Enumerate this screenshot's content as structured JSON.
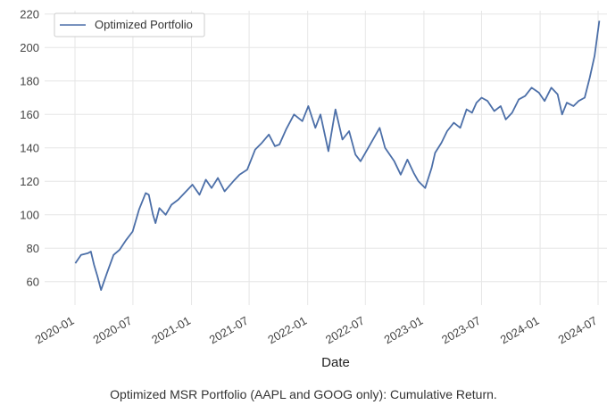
{
  "caption": "Optimized MSR Portfolio (AAPL and GOOG only): Cumulative Return.",
  "chart_data": {
    "type": "line",
    "xlabel": "Date",
    "ylabel": "",
    "ylim": [
      46,
      222
    ],
    "y_ticks": [
      60,
      80,
      100,
      120,
      140,
      160,
      180,
      200,
      220
    ],
    "x_ticks": [
      "2020-01",
      "2020-07",
      "2021-01",
      "2021-07",
      "2022-01",
      "2022-07",
      "2023-01",
      "2023-07",
      "2024-01",
      "2024-07"
    ],
    "grid": true,
    "legend_position": "top-left",
    "series": [
      {
        "name": "Optimized Portfolio",
        "color": "#4c6fa8",
        "x": [
          "2020-01-02",
          "2020-01-20",
          "2020-02-10",
          "2020-02-20",
          "2020-03-01",
          "2020-03-12",
          "2020-03-23",
          "2020-04-10",
          "2020-05-01",
          "2020-05-20",
          "2020-06-10",
          "2020-06-30",
          "2020-07-20",
          "2020-08-10",
          "2020-08-20",
          "2020-09-02",
          "2020-09-10",
          "2020-09-22",
          "2020-10-12",
          "2020-10-30",
          "2020-11-20",
          "2020-12-10",
          "2021-01-04",
          "2021-01-26",
          "2021-02-15",
          "2021-03-05",
          "2021-03-25",
          "2021-04-15",
          "2021-05-12",
          "2021-06-01",
          "2021-06-25",
          "2021-07-20",
          "2021-08-10",
          "2021-09-01",
          "2021-09-20",
          "2021-10-04",
          "2021-10-25",
          "2021-11-19",
          "2021-12-15",
          "2022-01-03",
          "2022-01-25",
          "2022-02-10",
          "2022-03-07",
          "2022-03-29",
          "2022-04-20",
          "2022-05-11",
          "2022-05-31",
          "2022-06-16",
          "2022-07-10",
          "2022-08-15",
          "2022-09-01",
          "2022-09-30",
          "2022-10-20",
          "2022-11-10",
          "2022-11-30",
          "2022-12-15",
          "2023-01-05",
          "2023-01-25",
          "2023-02-05",
          "2023-02-25",
          "2023-03-15",
          "2023-04-05",
          "2023-04-25",
          "2023-05-15",
          "2023-06-01",
          "2023-06-15",
          "2023-07-01",
          "2023-07-20",
          "2023-08-10",
          "2023-08-30",
          "2023-09-15",
          "2023-10-05",
          "2023-10-26",
          "2023-11-15",
          "2023-12-05",
          "2023-12-28",
          "2024-01-15",
          "2024-02-05",
          "2024-02-25",
          "2024-03-10",
          "2024-03-25",
          "2024-04-15",
          "2024-05-01",
          "2024-05-20",
          "2024-06-05",
          "2024-06-20",
          "2024-07-05"
        ],
        "values": [
          71,
          76,
          77,
          78,
          70,
          63,
          55,
          65,
          76,
          79,
          85,
          90,
          103,
          113,
          112,
          100,
          95,
          104,
          100,
          106,
          109,
          113,
          118,
          112,
          121,
          116,
          122,
          114,
          120,
          124,
          127,
          139,
          143,
          148,
          141,
          142,
          151,
          160,
          156,
          165,
          152,
          160,
          138,
          163,
          145,
          150,
          136,
          132,
          140,
          152,
          140,
          132,
          124,
          133,
          125,
          120,
          116,
          128,
          137,
          143,
          150,
          155,
          152,
          163,
          161,
          167,
          170,
          168,
          162,
          165,
          157,
          161,
          169,
          171,
          176,
          173,
          168,
          176,
          172,
          160,
          167,
          165,
          168,
          170,
          182,
          195,
          216
        ]
      }
    ]
  }
}
